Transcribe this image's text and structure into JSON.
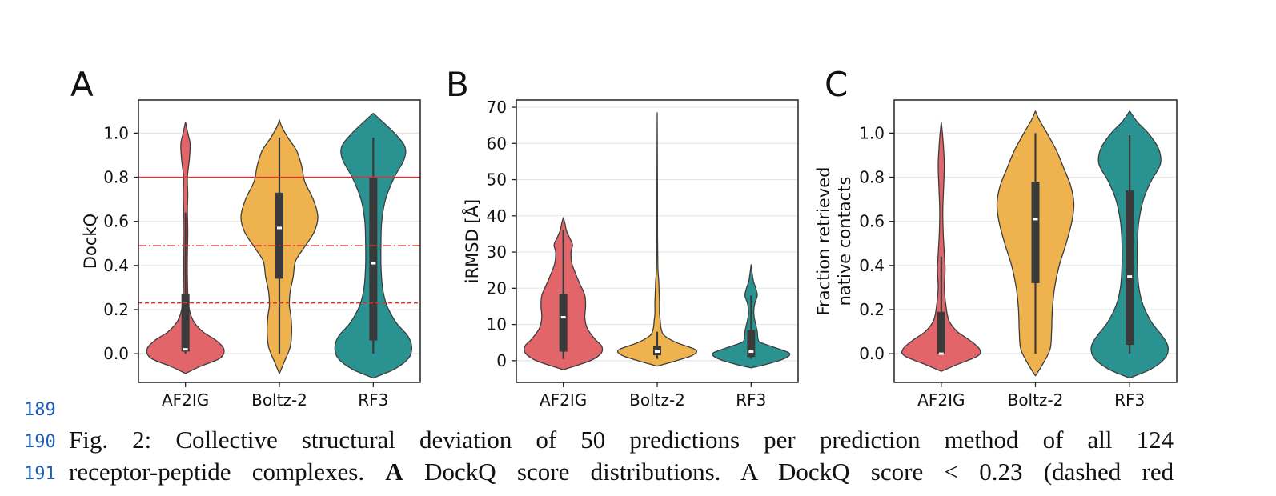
{
  "chart_data": [
    {
      "type": "violin",
      "panel": "A",
      "ylabel": "DockQ",
      "categories": [
        "AF2IG",
        "Boltz-2",
        "RF3"
      ],
      "ylim": [
        -0.13,
        1.15
      ],
      "yticks": [
        0.0,
        0.2,
        0.4,
        0.6,
        0.8,
        1.0
      ],
      "ytick_labels": [
        "0.0",
        "0.2",
        "0.4",
        "0.6",
        "0.8",
        "1.0"
      ],
      "grid": "horizontal",
      "reference_lines": [
        {
          "y": 0.8,
          "style": "solid",
          "color": "#e0302a"
        },
        {
          "y": 0.49,
          "style": "dashdot",
          "color": "#e0302a"
        },
        {
          "y": 0.23,
          "style": "dashed",
          "color": "#e0302a"
        }
      ],
      "series": [
        {
          "category": "AF2IG",
          "color": "#e2656a",
          "q1": 0.01,
          "median": 0.02,
          "q3": 0.27,
          "whisker_low": 0.0,
          "whisker_high": 0.64,
          "range": [
            -0.09,
            1.05
          ],
          "profile": [
            [
              -0.09,
              0.0
            ],
            [
              -0.06,
              0.35
            ],
            [
              -0.02,
              0.9
            ],
            [
              0.02,
              1.0
            ],
            [
              0.06,
              0.8
            ],
            [
              0.1,
              0.45
            ],
            [
              0.15,
              0.2
            ],
            [
              0.22,
              0.08
            ],
            [
              0.35,
              0.05
            ],
            [
              0.45,
              0.05
            ],
            [
              0.55,
              0.06
            ],
            [
              0.65,
              0.05
            ],
            [
              0.72,
              0.06
            ],
            [
              0.8,
              0.05
            ],
            [
              0.88,
              0.1
            ],
            [
              0.95,
              0.12
            ],
            [
              1.0,
              0.06
            ],
            [
              1.05,
              0.0
            ]
          ]
        },
        {
          "category": "Boltz-2",
          "color": "#eeb24f",
          "q1": 0.34,
          "median": 0.57,
          "q3": 0.73,
          "whisker_low": 0.0,
          "whisker_high": 0.98,
          "range": [
            -0.09,
            1.06
          ],
          "profile": [
            [
              -0.09,
              0.0
            ],
            [
              -0.04,
              0.12
            ],
            [
              0.03,
              0.28
            ],
            [
              0.1,
              0.32
            ],
            [
              0.17,
              0.3
            ],
            [
              0.22,
              0.26
            ],
            [
              0.28,
              0.28
            ],
            [
              0.35,
              0.36
            ],
            [
              0.42,
              0.42
            ],
            [
              0.48,
              0.64
            ],
            [
              0.55,
              0.9
            ],
            [
              0.62,
              1.0
            ],
            [
              0.7,
              0.88
            ],
            [
              0.78,
              0.66
            ],
            [
              0.85,
              0.58
            ],
            [
              0.92,
              0.45
            ],
            [
              0.98,
              0.22
            ],
            [
              1.03,
              0.06
            ],
            [
              1.06,
              0.0
            ]
          ]
        },
        {
          "category": "RF3",
          "color": "#2a9391",
          "q1": 0.06,
          "median": 0.41,
          "q3": 0.8,
          "whisker_low": 0.0,
          "whisker_high": 0.98,
          "range": [
            -0.11,
            1.09
          ],
          "profile": [
            [
              -0.11,
              0.0
            ],
            [
              -0.07,
              0.55
            ],
            [
              -0.02,
              0.92
            ],
            [
              0.03,
              1.0
            ],
            [
              0.08,
              0.9
            ],
            [
              0.14,
              0.6
            ],
            [
              0.22,
              0.35
            ],
            [
              0.3,
              0.24
            ],
            [
              0.4,
              0.2
            ],
            [
              0.5,
              0.2
            ],
            [
              0.6,
              0.22
            ],
            [
              0.7,
              0.32
            ],
            [
              0.8,
              0.55
            ],
            [
              0.88,
              0.8
            ],
            [
              0.94,
              0.82
            ],
            [
              1.0,
              0.55
            ],
            [
              1.05,
              0.25
            ],
            [
              1.09,
              0.0
            ]
          ]
        }
      ]
    },
    {
      "type": "violin",
      "panel": "B",
      "ylabel": "iRMSD [Å]",
      "categories": [
        "AF2IG",
        "Boltz-2",
        "RF3"
      ],
      "ylim": [
        -6,
        72
      ],
      "yticks": [
        0,
        10,
        20,
        30,
        40,
        50,
        60,
        70
      ],
      "ytick_labels": [
        "0",
        "10",
        "20",
        "30",
        "40",
        "50",
        "60",
        "70"
      ],
      "grid": "horizontal",
      "reference_lines": [],
      "series": [
        {
          "category": "AF2IG",
          "color": "#e2656a",
          "q1": 2.5,
          "median": 12,
          "q3": 18.5,
          "whisker_low": 0.5,
          "whisker_high": 36,
          "range": [
            -2.5,
            39.5
          ],
          "profile": [
            [
              -2.5,
              0.0
            ],
            [
              0.0,
              0.7
            ],
            [
              2,
              0.98
            ],
            [
              4,
              1.0
            ],
            [
              6,
              0.82
            ],
            [
              9,
              0.62
            ],
            [
              12,
              0.56
            ],
            [
              15,
              0.58
            ],
            [
              18,
              0.56
            ],
            [
              21,
              0.44
            ],
            [
              24,
              0.32
            ],
            [
              27,
              0.22
            ],
            [
              30,
              0.2
            ],
            [
              32,
              0.24
            ],
            [
              34,
              0.16
            ],
            [
              36,
              0.08
            ],
            [
              38,
              0.04
            ],
            [
              39.5,
              0.0
            ]
          ]
        },
        {
          "category": "Boltz-2",
          "color": "#eeb24f",
          "q1": 1.5,
          "median": 2.5,
          "q3": 4.0,
          "whisker_low": 0.5,
          "whisker_high": 8,
          "range": [
            -1.5,
            68.5
          ],
          "profile": [
            [
              -1.5,
              0.0
            ],
            [
              0,
              0.5
            ],
            [
              1.5,
              0.92
            ],
            [
              3,
              1.0
            ],
            [
              5,
              0.5
            ],
            [
              7,
              0.18
            ],
            [
              9,
              0.1
            ],
            [
              11,
              0.08
            ],
            [
              13,
              0.06
            ],
            [
              16,
              0.06
            ],
            [
              19,
              0.05
            ],
            [
              22,
              0.04
            ],
            [
              25,
              0.02
            ],
            [
              28,
              0.015
            ],
            [
              35,
              0.008
            ],
            [
              50,
              0.006
            ],
            [
              68.5,
              0.0
            ]
          ]
        },
        {
          "category": "RF3",
          "color": "#2a9391",
          "q1": 1.0,
          "median": 2.5,
          "q3": 8.5,
          "whisker_low": 0.5,
          "whisker_high": 18,
          "range": [
            -2,
            26.5
          ],
          "profile": [
            [
              -2,
              0.0
            ],
            [
              -1,
              0.4
            ],
            [
              0.5,
              0.85
            ],
            [
              2,
              1.0
            ],
            [
              3.5,
              0.65
            ],
            [
              5,
              0.25
            ],
            [
              6,
              0.18
            ],
            [
              8,
              0.16
            ],
            [
              10,
              0.12
            ],
            [
              12,
              0.08
            ],
            [
              14,
              0.07
            ],
            [
              16,
              0.1
            ],
            [
              18,
              0.16
            ],
            [
              20,
              0.12
            ],
            [
              22,
              0.06
            ],
            [
              24,
              0.03
            ],
            [
              26.5,
              0.0
            ]
          ]
        }
      ]
    },
    {
      "type": "violin",
      "panel": "C",
      "ylabel": [
        "Fraction retrieved",
        "native contacts"
      ],
      "categories": [
        "AF2IG",
        "Boltz-2",
        "RF3"
      ],
      "ylim": [
        -0.13,
        1.15
      ],
      "yticks": [
        0.0,
        0.2,
        0.4,
        0.6,
        0.8,
        1.0
      ],
      "ytick_labels": [
        "0.0",
        "0.2",
        "0.4",
        "0.6",
        "0.8",
        "1.0"
      ],
      "grid": "horizontal",
      "reference_lines": [],
      "series": [
        {
          "category": "AF2IG",
          "color": "#e2656a",
          "q1": 0.0,
          "median": 0.0,
          "q3": 0.19,
          "whisker_low": 0.0,
          "whisker_high": 0.44,
          "range": [
            -0.08,
            1.05
          ],
          "profile": [
            [
              -0.08,
              0.0
            ],
            [
              -0.05,
              0.4
            ],
            [
              -0.01,
              0.95
            ],
            [
              0.02,
              1.0
            ],
            [
              0.06,
              0.75
            ],
            [
              0.1,
              0.42
            ],
            [
              0.15,
              0.2
            ],
            [
              0.22,
              0.12
            ],
            [
              0.3,
              0.08
            ],
            [
              0.38,
              0.1
            ],
            [
              0.45,
              0.08
            ],
            [
              0.55,
              0.05
            ],
            [
              0.65,
              0.04
            ],
            [
              0.75,
              0.06
            ],
            [
              0.85,
              0.08
            ],
            [
              0.93,
              0.06
            ],
            [
              1.0,
              0.03
            ],
            [
              1.05,
              0.0
            ]
          ]
        },
        {
          "category": "Boltz-2",
          "color": "#eeb24f",
          "q1": 0.32,
          "median": 0.61,
          "q3": 0.78,
          "whisker_low": 0.0,
          "whisker_high": 1.0,
          "range": [
            -0.1,
            1.1
          ],
          "profile": [
            [
              -0.1,
              0.0
            ],
            [
              -0.05,
              0.18
            ],
            [
              0.02,
              0.38
            ],
            [
              0.1,
              0.42
            ],
            [
              0.2,
              0.44
            ],
            [
              0.3,
              0.5
            ],
            [
              0.4,
              0.62
            ],
            [
              0.5,
              0.8
            ],
            [
              0.6,
              0.95
            ],
            [
              0.68,
              1.0
            ],
            [
              0.76,
              0.92
            ],
            [
              0.84,
              0.74
            ],
            [
              0.92,
              0.55
            ],
            [
              1.0,
              0.3
            ],
            [
              1.06,
              0.1
            ],
            [
              1.1,
              0.0
            ]
          ]
        },
        {
          "category": "RF3",
          "color": "#2a9391",
          "q1": 0.04,
          "median": 0.35,
          "q3": 0.74,
          "whisker_low": 0.0,
          "whisker_high": 0.99,
          "range": [
            -0.11,
            1.1
          ],
          "profile": [
            [
              -0.11,
              0.0
            ],
            [
              -0.07,
              0.55
            ],
            [
              -0.02,
              0.92
            ],
            [
              0.03,
              1.0
            ],
            [
              0.08,
              0.85
            ],
            [
              0.14,
              0.58
            ],
            [
              0.22,
              0.35
            ],
            [
              0.3,
              0.24
            ],
            [
              0.4,
              0.2
            ],
            [
              0.5,
              0.2
            ],
            [
              0.6,
              0.24
            ],
            [
              0.7,
              0.36
            ],
            [
              0.78,
              0.55
            ],
            [
              0.86,
              0.8
            ],
            [
              0.93,
              0.75
            ],
            [
              1.0,
              0.48
            ],
            [
              1.05,
              0.2
            ],
            [
              1.1,
              0.0
            ]
          ]
        }
      ]
    }
  ],
  "caption": {
    "line_numbers": [
      "189",
      "190",
      "191"
    ],
    "line1_words": [
      "Fig.",
      "2:",
      "Collective",
      "structural",
      "deviation",
      "of",
      "50",
      "predictions",
      "per",
      "prediction",
      "method",
      "of",
      "all",
      "124"
    ],
    "line2_a": "receptor-peptide complexes.",
    "line2_bold": "A",
    "line2_b_words": [
      "DockQ",
      "score",
      "distributions.",
      "A",
      "DockQ",
      "score",
      "<",
      "0.23",
      "(dashed",
      "red"
    ]
  }
}
